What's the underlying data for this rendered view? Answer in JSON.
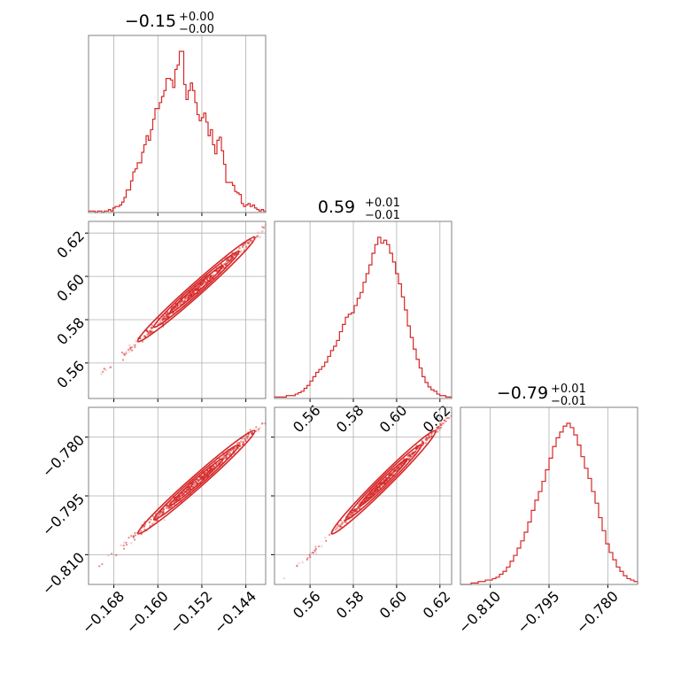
{
  "chart_data": [
    {
      "type": "histogram",
      "panel": "hist-p1",
      "title": {
        "value": "−0.15",
        "plus": "+0.00",
        "minus": "−0.00"
      },
      "xlim": [
        -0.1726,
        -0.1404
      ],
      "xticks": [
        -0.168,
        -0.16,
        -0.152,
        -0.144
      ],
      "xticklabels": [],
      "grid": true,
      "bin_edges_range": [
        -0.1726,
        -0.1404
      ],
      "counts": [
        1,
        1,
        1,
        0,
        1,
        1,
        0,
        1,
        1,
        2,
        1,
        3,
        4,
        4,
        5,
        7,
        10,
        15,
        15,
        21,
        27,
        29,
        33,
        33,
        40,
        45,
        51,
        48,
        55,
        62,
        69,
        69,
        73,
        77,
        81,
        89,
        89,
        88,
        83,
        95,
        98,
        107,
        107,
        85,
        75,
        81,
        86,
        81,
        73,
        65,
        61,
        63,
        66,
        60,
        51,
        55,
        45,
        39,
        48,
        50,
        41,
        32,
        20,
        20,
        20,
        18,
        14,
        13,
        12,
        6,
        4,
        5,
        6,
        4,
        5,
        3,
        2,
        1,
        2,
        1
      ]
    },
    {
      "type": "histogram",
      "panel": "hist-p2",
      "title": {
        "value": "0.59",
        "plus": "+0.01",
        "minus": "−0.01"
      },
      "xlim": [
        0.5436,
        0.6254
      ],
      "xticks": [
        0.56,
        0.58,
        0.6,
        0.62
      ],
      "xticklabels": [
        "0.56",
        "0.58",
        "0.60",
        "0.62"
      ],
      "grid": true,
      "counts": [
        1,
        1,
        1,
        1,
        2,
        2,
        2,
        3,
        4,
        5,
        7,
        9,
        12,
        15,
        18,
        20,
        22,
        25,
        29,
        33,
        36,
        40,
        46,
        51,
        56,
        58,
        59,
        64,
        69,
        73,
        80,
        86,
        92,
        100,
        106,
        111,
        107,
        109,
        106,
        100,
        94,
        86,
        79,
        70,
        61,
        50,
        42,
        34,
        27,
        21,
        15,
        11,
        8,
        6,
        5,
        3,
        2,
        2,
        1,
        1
      ]
    },
    {
      "type": "histogram",
      "panel": "hist-p3",
      "title": {
        "value": "−0.79",
        "plus": "+0.01",
        "minus": "−0.01"
      },
      "xlim": [
        -0.8176,
        -0.7724
      ],
      "xticks": [
        -0.81,
        -0.795,
        -0.78
      ],
      "xticklabels": [
        "−0.810",
        "−0.795",
        "−0.780"
      ],
      "grid": true,
      "counts": [
        0,
        0,
        0,
        1,
        1,
        2,
        2,
        3,
        3,
        4,
        5,
        7,
        9,
        12,
        16,
        20,
        25,
        30,
        36,
        43,
        51,
        58,
        64,
        71,
        79,
        87,
        95,
        101,
        105,
        109,
        111,
        108,
        103,
        96,
        88,
        80,
        73,
        64,
        56,
        46,
        37,
        28,
        22,
        17,
        12,
        9,
        6,
        4,
        3,
        2
      ]
    },
    {
      "type": "scatter",
      "panel": "scatter-p1-p2",
      "contour": true,
      "xlim": [
        -0.1726,
        -0.1404
      ],
      "ylim": [
        0.5436,
        0.6254
      ],
      "xticks": [
        -0.168,
        -0.16,
        -0.152,
        -0.144
      ],
      "yticks": [
        0.56,
        0.58,
        0.6,
        0.62
      ],
      "xticklabels": [],
      "yticklabels": [
        "0.56",
        "0.58",
        "0.60",
        "0.62"
      ],
      "grid": true,
      "center": [
        -0.153,
        0.594
      ],
      "spread": [
        0.0042,
        0.0095
      ],
      "correlation": 0.994
    },
    {
      "type": "scatter",
      "panel": "scatter-p1-p3",
      "contour": true,
      "xlim": [
        -0.1726,
        -0.1404
      ],
      "ylim": [
        -0.8176,
        -0.7724
      ],
      "xticks": [
        -0.168,
        -0.16,
        -0.152,
        -0.144
      ],
      "yticks": [
        -0.81,
        -0.795,
        -0.78
      ],
      "xticklabels": [
        "−0.168",
        "−0.160",
        "−0.152",
        "−0.144"
      ],
      "yticklabels": [
        "−0.810",
        "−0.795",
        "−0.780"
      ],
      "grid": true,
      "center": [
        -0.153,
        -0.7915
      ],
      "spread": [
        0.0042,
        0.0052
      ],
      "correlation": 0.993
    },
    {
      "type": "scatter",
      "panel": "scatter-p2-p3",
      "contour": true,
      "xlim": [
        0.5436,
        0.6254
      ],
      "ylim": [
        -0.8176,
        -0.7724
      ],
      "xticks": [
        0.56,
        0.58,
        0.6,
        0.62
      ],
      "yticks": [
        -0.81,
        -0.795,
        -0.78
      ],
      "xticklabels": [
        "0.56",
        "0.58",
        "0.60",
        "0.62"
      ],
      "yticklabels": [],
      "grid": true,
      "center": [
        0.594,
        -0.7915
      ],
      "spread": [
        0.0095,
        0.0052
      ],
      "correlation": 0.997
    }
  ],
  "style": {
    "line_color": "#d62728",
    "grid_color": "#b0b0b0",
    "spine_color": "#808080"
  }
}
